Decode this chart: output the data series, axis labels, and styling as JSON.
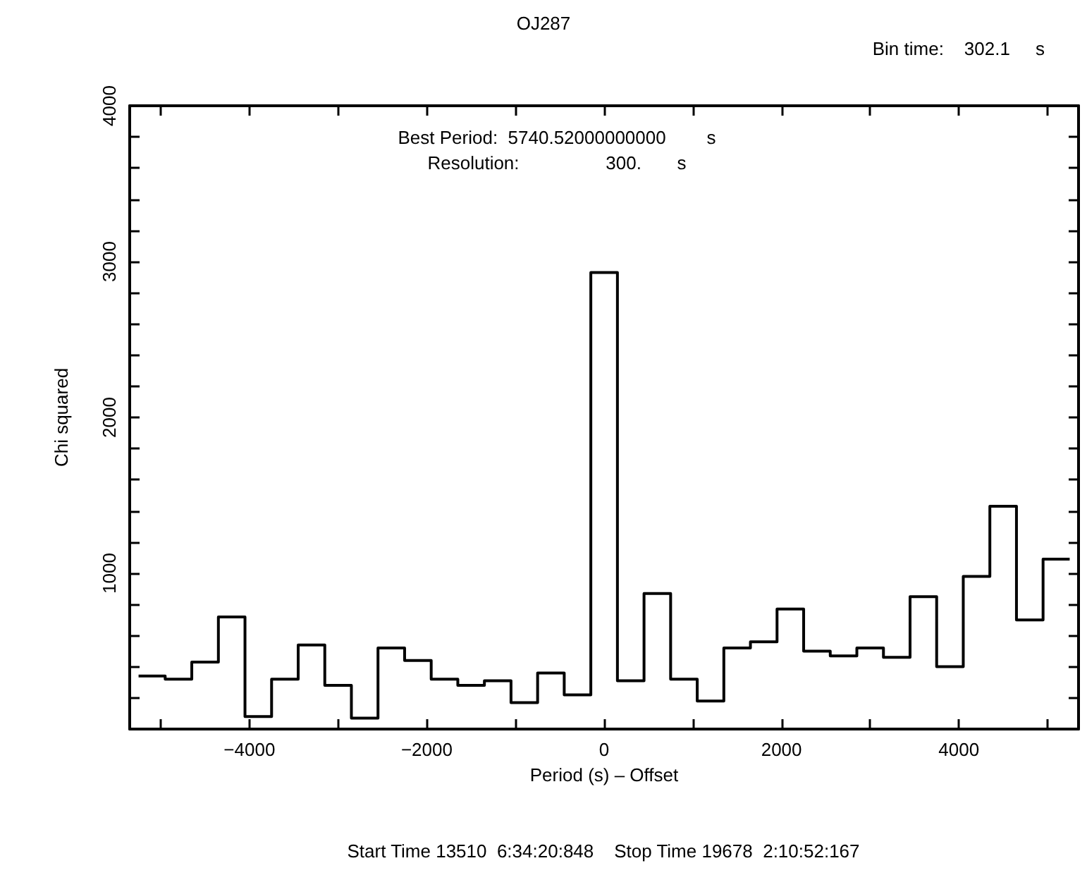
{
  "chart_data": {
    "type": "histogram",
    "title": "OJ287",
    "xlabel": "Period (s) – Offset",
    "ylabel": "Chi squared",
    "annotations": [
      "Bin time:    302.1     s",
      "Best Period:  5740.52000000000        s",
      "Resolution:                 300.       s",
      "Start Time 13510  6:34:20:848    Stop Time 19678  2:10:52:167"
    ],
    "bins": [
      -5250,
      -4950,
      -4650,
      -4350,
      -4050,
      -3750,
      -3450,
      -3150,
      -2850,
      -2550,
      -2250,
      -1950,
      -1650,
      -1350,
      -1050,
      -750,
      -450,
      -150,
      150,
      450,
      750,
      1050,
      1350,
      1650,
      1950,
      2250,
      2550,
      2850,
      3150,
      3450,
      3750,
      4050,
      4350,
      4650,
      4950,
      5250
    ],
    "values": [
      340,
      320,
      430,
      720,
      80,
      320,
      540,
      280,
      70,
      520,
      440,
      320,
      280,
      310,
      170,
      360,
      220,
      2930,
      310,
      870,
      320,
      180,
      520,
      560,
      770,
      500,
      470,
      520,
      460,
      850,
      400,
      980,
      1430,
      700,
      1090
    ],
    "color": "#000000",
    "xlim": [
      -5350,
      5350
    ],
    "xticks": [
      {
        "value": -5000,
        "label": null
      },
      -4000,
      {
        "value": -3000,
        "label": null
      },
      -2000,
      {
        "value": -1000,
        "label": null
      },
      0,
      {
        "value": 1000,
        "label": null
      },
      2000,
      {
        "value": 3000,
        "label": null
      },
      4000,
      {
        "value": 5000,
        "label": null
      }
    ],
    "ylim": [
      0,
      4000
    ],
    "yticks": [
      {
        "value": 200,
        "label": null
      },
      {
        "value": 400,
        "label": null
      },
      {
        "value": 600,
        "label": null
      },
      {
        "value": 800,
        "label": null
      },
      1000,
      {
        "value": 1200,
        "label": null
      },
      {
        "value": 1400,
        "label": null
      },
      {
        "value": 1600,
        "label": null
      },
      {
        "value": 1800,
        "label": null
      },
      2000,
      {
        "value": 2200,
        "label": null
      },
      {
        "value": 2400,
        "label": null
      },
      {
        "value": 2600,
        "label": null
      },
      {
        "value": 2800,
        "label": null
      },
      3000,
      {
        "value": 3200,
        "label": null
      },
      {
        "value": 3400,
        "label": null
      },
      {
        "value": 3600,
        "label": null
      },
      {
        "value": 3800,
        "label": null
      },
      4000
    ],
    "grid": false
  }
}
